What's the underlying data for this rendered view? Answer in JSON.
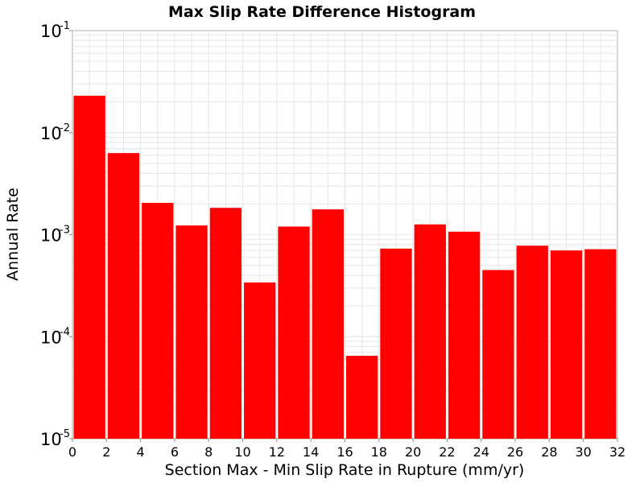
{
  "chart_data": {
    "type": "bar",
    "title": "Max Slip Rate Difference Histogram",
    "xlabel": "Section Max - Min Slip Rate in Rupture (mm/yr)",
    "ylabel": "Annual Rate",
    "xlim": [
      0,
      32
    ],
    "ylim": [
      1e-05,
      0.1
    ],
    "y_scale": "log",
    "grid": true,
    "bar_color": "#ff0000",
    "x_ticks": [
      "0",
      "2",
      "4",
      "6",
      "8",
      "10",
      "12",
      "14",
      "16",
      "18",
      "20",
      "22",
      "24",
      "26",
      "28",
      "30",
      "32"
    ],
    "y_ticks": [
      {
        "base": "10",
        "exp": "-1",
        "value": 0.1
      },
      {
        "base": "10",
        "exp": "-2",
        "value": 0.01
      },
      {
        "base": "10",
        "exp": "-3",
        "value": 0.001
      },
      {
        "base": "10",
        "exp": "-4",
        "value": 0.0001
      },
      {
        "base": "10",
        "exp": "-5",
        "value": 1e-05
      }
    ],
    "bins": [
      {
        "x0": 0,
        "x1": 2,
        "value": 0.023
      },
      {
        "x0": 2,
        "x1": 4,
        "value": 0.0063
      },
      {
        "x0": 4,
        "x1": 6,
        "value": 0.00205
      },
      {
        "x0": 6,
        "x1": 8,
        "value": 0.00123
      },
      {
        "x0": 8,
        "x1": 10,
        "value": 0.00183
      },
      {
        "x0": 10,
        "x1": 12,
        "value": 0.00034
      },
      {
        "x0": 12,
        "x1": 14,
        "value": 0.0012
      },
      {
        "x0": 14,
        "x1": 16,
        "value": 0.00177
      },
      {
        "x0": 16,
        "x1": 18,
        "value": 6.5e-05
      },
      {
        "x0": 18,
        "x1": 20,
        "value": 0.00073
      },
      {
        "x0": 20,
        "x1": 22,
        "value": 0.00126
      },
      {
        "x0": 22,
        "x1": 24,
        "value": 0.00107
      },
      {
        "x0": 24,
        "x1": 26,
        "value": 0.00045
      },
      {
        "x0": 26,
        "x1": 28,
        "value": 0.00078
      },
      {
        "x0": 28,
        "x1": 30,
        "value": 0.0007
      },
      {
        "x0": 30,
        "x1": 32,
        "value": 0.00072
      }
    ]
  }
}
